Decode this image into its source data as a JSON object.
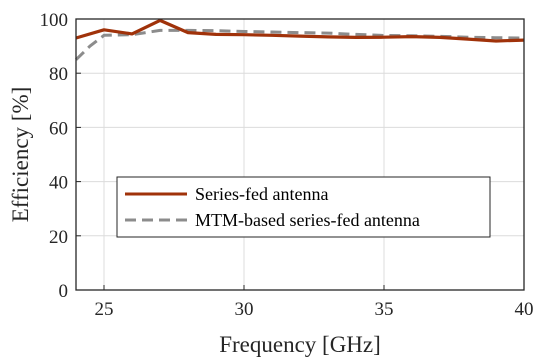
{
  "chart_data": {
    "type": "line",
    "xlabel": "Frequency [GHz]",
    "ylabel": "Efficiency [%]",
    "xlim": [
      24,
      40
    ],
    "ylim": [
      0,
      100
    ],
    "xticks": [
      25,
      30,
      35,
      40
    ],
    "yticks": [
      0,
      20,
      40,
      60,
      80,
      100
    ],
    "grid": true,
    "legend_position": "lower-left",
    "series": [
      {
        "name": "Series-fed antenna",
        "color": "#a0320a",
        "style": "solid",
        "x": [
          24,
          25,
          26,
          27,
          28,
          29,
          30,
          31,
          32,
          33,
          34,
          35,
          36,
          37,
          38,
          39,
          40
        ],
        "y": [
          93,
          96,
          94.5,
          99.5,
          95,
          94.3,
          94.2,
          94,
          93.7,
          93.4,
          93.2,
          93.3,
          93.5,
          93.2,
          92.6,
          91.9,
          92.2
        ]
      },
      {
        "name": "MTM-based series-fed antenna",
        "color": "#8c8c8c",
        "style": "dashed",
        "x": [
          24,
          24.5,
          25,
          26,
          27,
          28,
          29,
          30,
          31,
          32,
          33,
          34,
          35,
          36,
          37,
          38,
          39,
          40
        ],
        "y": [
          85,
          90,
          94,
          94.2,
          95.8,
          95.8,
          95.7,
          95.4,
          95.2,
          95,
          94.8,
          94.3,
          93.9,
          93.8,
          93.6,
          93.3,
          93.1,
          93
        ]
      }
    ]
  }
}
